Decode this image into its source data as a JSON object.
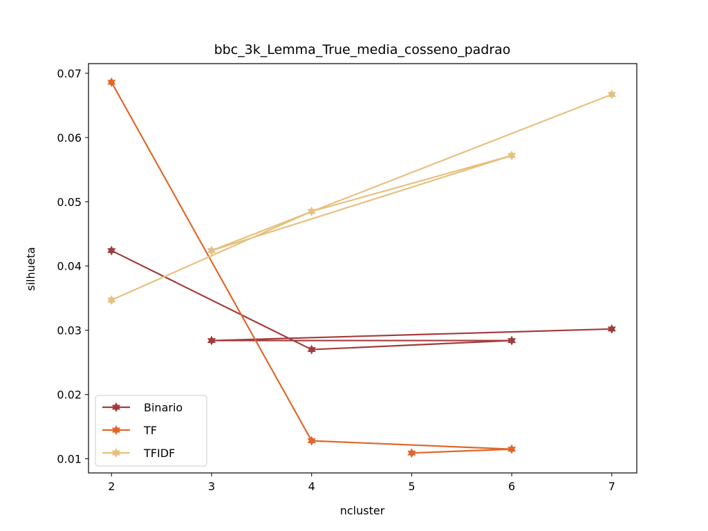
{
  "chart_data": {
    "type": "line",
    "title": "bbc_3k_Lemma_True_media_cosseno_padrao",
    "xlabel": "ncluster",
    "ylabel": "silhueta",
    "xlim": [
      1.77,
      7.25
    ],
    "ylim": [
      0.0078,
      0.0715
    ],
    "xticks": [
      2,
      3,
      4,
      5,
      6,
      7
    ],
    "yticks": [
      0.01,
      0.02,
      0.03,
      0.04,
      0.05,
      0.06,
      0.07
    ],
    "ytick_labels": [
      "0.01",
      "0.02",
      "0.03",
      "0.04",
      "0.05",
      "0.06",
      "0.07"
    ],
    "legend_position": "lower-left",
    "series": [
      {
        "name": "Binario",
        "color": "#a23c3c",
        "x": [
          2,
          4,
          6,
          3,
          7
        ],
        "y": [
          0.0424,
          0.027,
          0.0284,
          0.0284,
          0.0302
        ]
      },
      {
        "name": "TF",
        "color": "#e0662a",
        "x": [
          2,
          4,
          6,
          5
        ],
        "y": [
          0.0686,
          0.0128,
          0.0115,
          0.0109
        ]
      },
      {
        "name": "TFIDF",
        "color": "#e6c07e",
        "x": [
          2,
          4,
          6,
          3,
          7
        ],
        "y": [
          0.0347,
          0.0485,
          0.0572,
          0.0424,
          0.0667
        ]
      }
    ]
  }
}
